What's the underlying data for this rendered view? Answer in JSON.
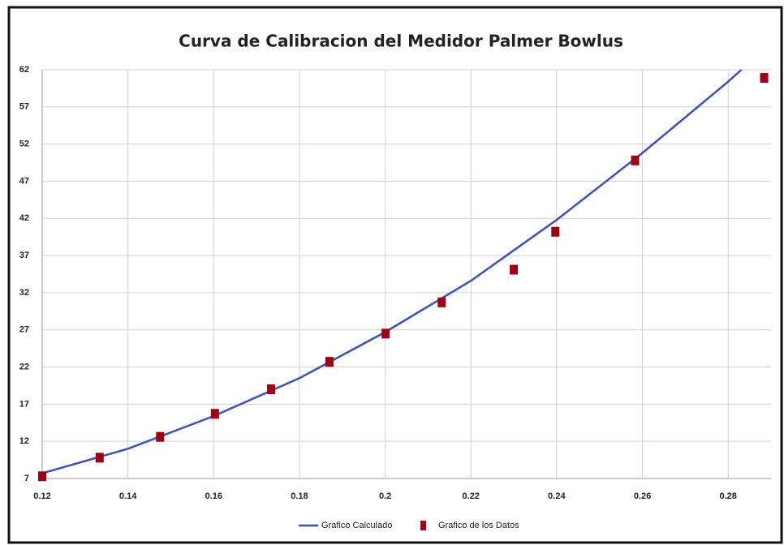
{
  "chart_data": {
    "type": "line",
    "title": "Curva de Calibracion del Medidor Palmer Bowlus",
    "xlim": [
      0.12,
      0.29
    ],
    "xticks": [
      0.12,
      0.14,
      0.16,
      0.18,
      0.2,
      0.22,
      0.24,
      0.26,
      0.28
    ],
    "ylim": [
      7,
      62
    ],
    "yticks": [
      7,
      12,
      17,
      22,
      27,
      32,
      37,
      42,
      47,
      52,
      57,
      62
    ],
    "grid": true,
    "legend": "bottom",
    "series": [
      {
        "name": "Grafico Calculado",
        "type": "line",
        "color": "#3a4fc8",
        "x": [
          0.12,
          0.14,
          0.16,
          0.18,
          0.2,
          0.22,
          0.24,
          0.26,
          0.28,
          0.2831
        ],
        "values": [
          7.7,
          11.0,
          15.4,
          20.5,
          26.7,
          33.6,
          41.8,
          50.8,
          60.4,
          62
        ]
      },
      {
        "name": "Grafico de los Datos",
        "type": "scatter",
        "color": "#a00010",
        "x": [
          0.12,
          0.1334,
          0.1475,
          0.1603,
          0.1734,
          0.187,
          0.2001,
          0.2132,
          0.23,
          0.2397,
          0.2583,
          0.2884
        ],
        "values": [
          7.3,
          9.8,
          12.6,
          15.7,
          19.0,
          22.7,
          26.5,
          30.7,
          35.1,
          40.2,
          49.8,
          60.9
        ]
      }
    ]
  }
}
